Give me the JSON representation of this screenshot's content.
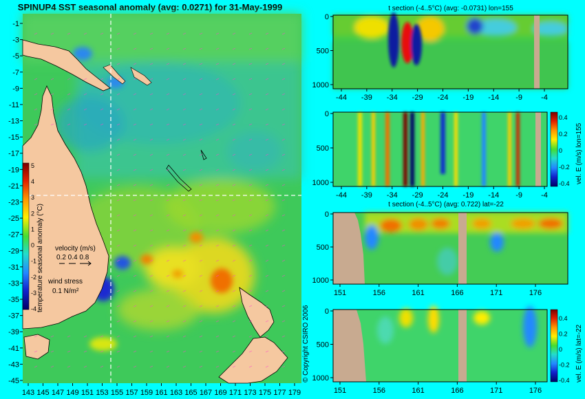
{
  "colors": {
    "bg": "#00ffff",
    "land": "#f5c8a0",
    "section_land": "#c8aa90",
    "grid_line": "#ffffff",
    "vector": "#ff44cc"
  },
  "copyright": "© Copyright CSIRO 2006",
  "chart_data": [
    {
      "type": "heatmap",
      "title": "SPINUP4 SST seasonal anomaly (avg: 0.0271) for 31-May-1999",
      "y_ticks": [
        "-1",
        "-3",
        "-5",
        "-7",
        "-9",
        "-11",
        "-13",
        "-15",
        "-17",
        "-19",
        "-21",
        "-23",
        "-25",
        "-27",
        "-29",
        "-31",
        "-33",
        "-35",
        "-37",
        "-39",
        "-41",
        "-43",
        "-45"
      ],
      "x_ticks": [
        "143",
        "145",
        "147",
        "149",
        "151",
        "153",
        "155",
        "157",
        "159",
        "161",
        "163",
        "165",
        "167",
        "169",
        "171",
        "173",
        "175",
        "177",
        "179"
      ],
      "colorbar_label": "temperature seasonal anomaly (°C)",
      "colorbar_ticks": [
        "5",
        "4",
        "3",
        "2",
        "1",
        "0",
        "-1",
        "-2",
        "-3",
        "-4"
      ],
      "velocity_label": "velocity (m/s)",
      "velocity_scale": "0.2 0.4 0.8",
      "wind_label": "wind stress",
      "wind_scale": "0.1 N/m²",
      "crosshair": {
        "lon": 155,
        "lat": -22
      }
    },
    {
      "type": "heatmap",
      "title": "t section (-4..5°C) (avg: -0.0731) lon=155",
      "y_ticks": [
        "0",
        "500",
        "1000"
      ],
      "x_ticks": [
        "-44",
        "-39",
        "-34",
        "-29",
        "-24",
        "-19",
        "-14",
        "-9",
        "-4"
      ]
    },
    {
      "type": "heatmap",
      "title": "",
      "y_ticks": [
        "0",
        "500",
        "1000"
      ],
      "x_ticks": [
        "-44",
        "-39",
        "-34",
        "-29",
        "-24",
        "-19",
        "-14",
        "-9",
        "-4"
      ],
      "colorbar_label": "vel. E (m/s) lon=155",
      "colorbar_ticks": [
        "0.4",
        "0.2",
        "0",
        "-0.2",
        "-0.4"
      ]
    },
    {
      "type": "heatmap",
      "title": "t section (-4..5°C) (avg: 0.722) lat=-22",
      "y_ticks": [
        "0",
        "500",
        "1000"
      ],
      "x_ticks": [
        "151",
        "156",
        "161",
        "166",
        "171",
        "176"
      ]
    },
    {
      "type": "heatmap",
      "title": "",
      "y_ticks": [
        "0",
        "500",
        "1000"
      ],
      "x_ticks": [
        "151",
        "156",
        "161",
        "166",
        "171",
        "176"
      ],
      "colorbar_label": "vel. E (m/s) lat=-22",
      "colorbar_ticks": [
        "0.4",
        "0.2",
        "0",
        "-0.2",
        "-0.4"
      ]
    }
  ]
}
